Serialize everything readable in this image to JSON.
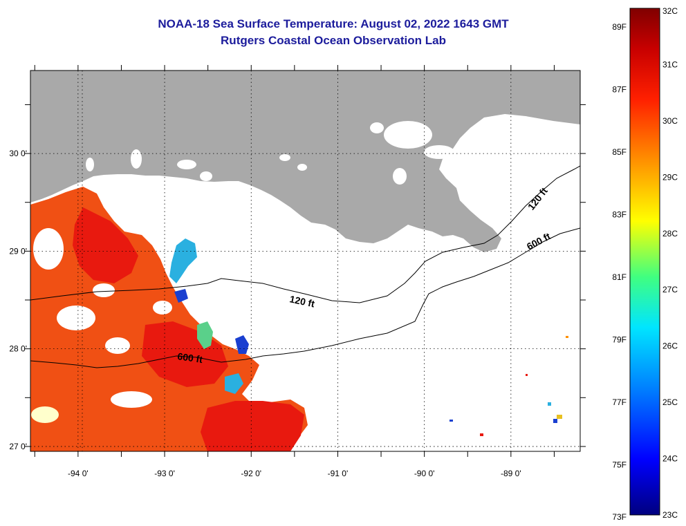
{
  "title_line1": "NOAA-18 Sea Surface Temperature:  August 02, 2022 1643 GMT",
  "title_line2": "Rutgers Coastal Ocean Observation Lab",
  "map": {
    "lon_range": [
      -94.55,
      -88.2
    ],
    "lat_range": [
      26.95,
      30.85
    ],
    "lon_ticks": [
      {
        "value": -94,
        "label": "-94 0'"
      },
      {
        "value": -93,
        "label": "-93 0'"
      },
      {
        "value": -92,
        "label": "-92 0'"
      },
      {
        "value": -91,
        "label": "-91 0'"
      },
      {
        "value": -90,
        "label": "-90 0'"
      },
      {
        "value": -89,
        "label": "-89 0'"
      }
    ],
    "lat_ticks": [
      {
        "value": 30,
        "label": "30 0'"
      },
      {
        "value": 29,
        "label": "29 0'"
      },
      {
        "value": 28,
        "label": "28 0'"
      },
      {
        "value": 27,
        "label": "27 0'"
      }
    ],
    "contour_labels": [
      "120 ft",
      "600 ft",
      "120 ft",
      "600 ft"
    ],
    "colors": {
      "land": "#a9a9a9",
      "cloud_ocean": "#ffffff",
      "sst_warm": "#f05014",
      "sst_hot": "#e8190f",
      "sst_cool": "#2ab0e0"
    }
  },
  "colorbar": {
    "fahrenheit_labels": [
      "89F",
      "87F",
      "85F",
      "83F",
      "81F",
      "79F",
      "77F",
      "75F",
      "73F"
    ],
    "celsius_labels": [
      "32C",
      "31C",
      "30C",
      "29C",
      "28C",
      "27C",
      "26C",
      "25C",
      "24C",
      "23C"
    ],
    "range_celsius": [
      23,
      32
    ],
    "colors": [
      "#00007f",
      "#0000ff",
      "#0080ff",
      "#00e5ff",
      "#40ff80",
      "#ffff00",
      "#ff9000",
      "#ff2000",
      "#c80000",
      "#800000"
    ]
  }
}
